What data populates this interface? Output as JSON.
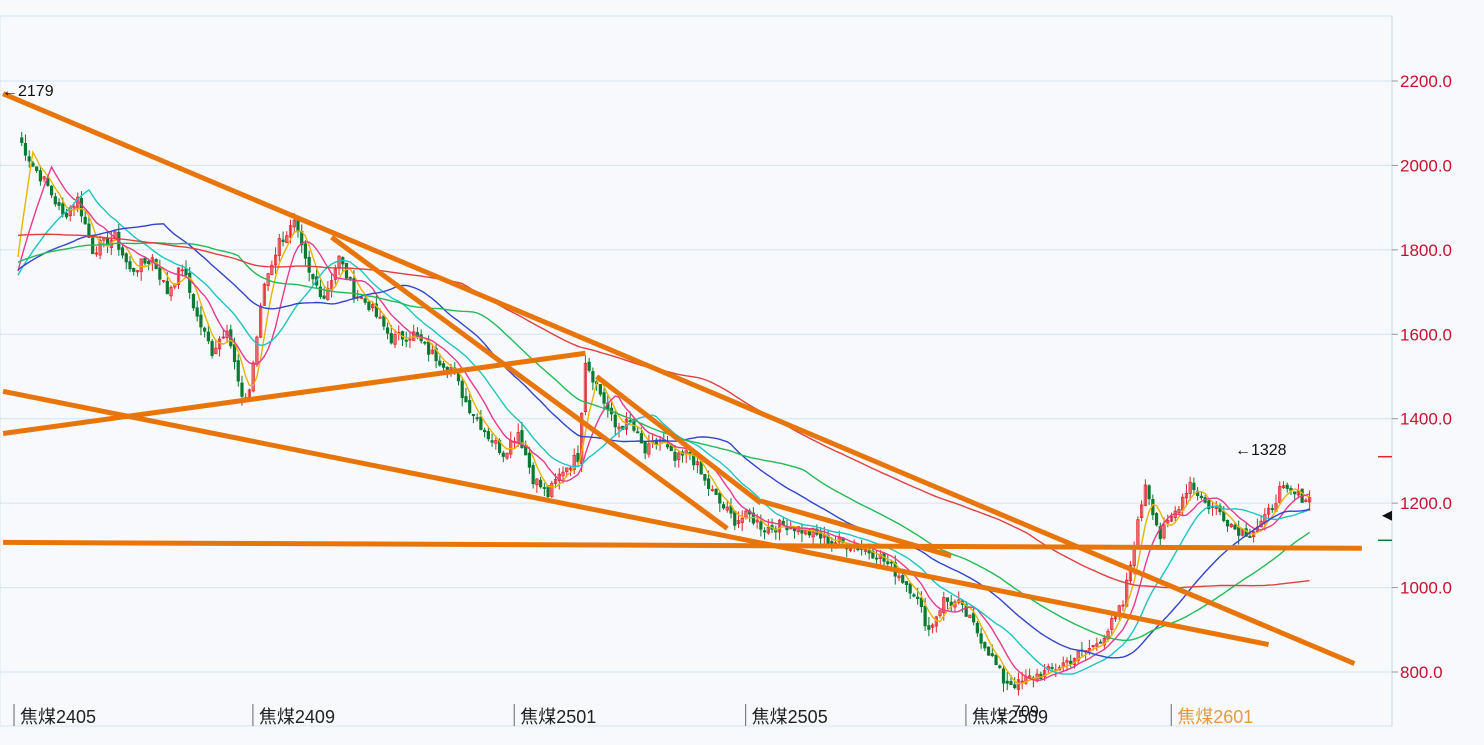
{
  "chart_data": {
    "type": "candlestick",
    "y_axis": {
      "ticks": [
        "800.0",
        "1000.0",
        "1200.0",
        "1400.0",
        "1600.0",
        "1800.0",
        "2000.0",
        "2200.0"
      ],
      "ylim": [
        700,
        2330
      ],
      "side": "right",
      "grid": true
    },
    "x_axis": {
      "labels": [
        {
          "text": "焦煤2405",
          "index": 0
        },
        {
          "text": "焦煤2409",
          "index": 64
        },
        {
          "text": "焦煤2501",
          "index": 134
        },
        {
          "text": "焦煤2505",
          "index": 196
        },
        {
          "text": "焦煤2509",
          "index": 255
        },
        {
          "text": "焦煤2601",
          "index": 310,
          "highlight": true
        }
      ],
      "count": 350
    },
    "annotations": [
      {
        "text": "←2179",
        "value": 2179
      },
      {
        "text": "←1328",
        "value": 1328
      },
      {
        "text": "←709",
        "value": 709
      }
    ],
    "price_keypoints": [
      [
        0,
        2070
      ],
      [
        4,
        2000
      ],
      [
        8,
        1950
      ],
      [
        12,
        1880
      ],
      [
        16,
        1920
      ],
      [
        20,
        1800
      ],
      [
        26,
        1830
      ],
      [
        30,
        1750
      ],
      [
        36,
        1780
      ],
      [
        40,
        1700
      ],
      [
        44,
        1760
      ],
      [
        48,
        1640
      ],
      [
        52,
        1560
      ],
      [
        56,
        1620
      ],
      [
        60,
        1440
      ],
      [
        62,
        1470
      ],
      [
        66,
        1720
      ],
      [
        70,
        1820
      ],
      [
        74,
        1860
      ],
      [
        78,
        1740
      ],
      [
        82,
        1690
      ],
      [
        86,
        1780
      ],
      [
        90,
        1700
      ],
      [
        94,
        1670
      ],
      [
        100,
        1590
      ],
      [
        106,
        1600
      ],
      [
        110,
        1560
      ],
      [
        116,
        1520
      ],
      [
        120,
        1440
      ],
      [
        126,
        1360
      ],
      [
        130,
        1320
      ],
      [
        134,
        1370
      ],
      [
        138,
        1260
      ],
      [
        142,
        1220
      ],
      [
        146,
        1280
      ],
      [
        150,
        1310
      ],
      [
        152,
        1540
      ],
      [
        156,
        1460
      ],
      [
        160,
        1380
      ],
      [
        164,
        1390
      ],
      [
        168,
        1320
      ],
      [
        172,
        1350
      ],
      [
        176,
        1300
      ],
      [
        180,
        1320
      ],
      [
        184,
        1250
      ],
      [
        188,
        1200
      ],
      [
        192,
        1160
      ],
      [
        196,
        1170
      ],
      [
        200,
        1140
      ],
      [
        206,
        1150
      ],
      [
        212,
        1130
      ],
      [
        218,
        1110
      ],
      [
        224,
        1100
      ],
      [
        230,
        1080
      ],
      [
        236,
        1030
      ],
      [
        240,
        990
      ],
      [
        244,
        900
      ],
      [
        248,
        970
      ],
      [
        252,
        960
      ],
      [
        256,
        910
      ],
      [
        260,
        850
      ],
      [
        264,
        780
      ],
      [
        268,
        770
      ],
      [
        272,
        790
      ],
      [
        276,
        800
      ],
      [
        282,
        830
      ],
      [
        288,
        860
      ],
      [
        292,
        900
      ],
      [
        296,
        960
      ],
      [
        300,
        1150
      ],
      [
        302,
        1250
      ],
      [
        306,
        1120
      ],
      [
        310,
        1180
      ],
      [
        314,
        1250
      ],
      [
        318,
        1200
      ],
      [
        322,
        1180
      ],
      [
        326,
        1140
      ],
      [
        330,
        1130
      ],
      [
        334,
        1160
      ],
      [
        338,
        1230
      ],
      [
        342,
        1220
      ],
      [
        346,
        1210
      ]
    ],
    "moving_averages": [
      {
        "color": "#e8b400",
        "period": 5
      },
      {
        "color": "#e83a8c",
        "period": 10
      },
      {
        "color": "#1fc4c0",
        "period": 20
      },
      {
        "color": "#3344cc",
        "period": 40
      },
      {
        "color": "#22bb55",
        "period": 60
      },
      {
        "color": "#e04040",
        "period": 120
      }
    ],
    "trendlines": [
      {
        "color": "#e8750a",
        "p1": [
          -4,
          2170
        ],
        "p2": [
          358,
          820
        ]
      },
      {
        "color": "#e8750a",
        "p1": [
          -4,
          1465
        ],
        "p2": [
          335,
          865
        ]
      },
      {
        "color": "#e8750a",
        "p1": [
          -4,
          1365
        ],
        "p2": [
          152,
          1555
        ]
      },
      {
        "color": "#e8750a",
        "p1": [
          -4,
          1107
        ],
        "p2": [
          360,
          1093
        ]
      },
      {
        "color": "#e8750a",
        "p1": [
          84,
          1830
        ],
        "p2": [
          190,
          1140
        ]
      },
      {
        "color": "#e8750a",
        "p1": [
          155,
          1500
        ],
        "p2": [
          199,
          1200
        ]
      },
      {
        "color": "#e8750a",
        "p1": [
          199,
          1205
        ],
        "p2": [
          250,
          1075
        ]
      }
    ],
    "colors": {
      "up": "#e2262a",
      "down": "#0a7a32",
      "grid": "#d4e4f2",
      "axis_text": "#c8102e"
    }
  }
}
